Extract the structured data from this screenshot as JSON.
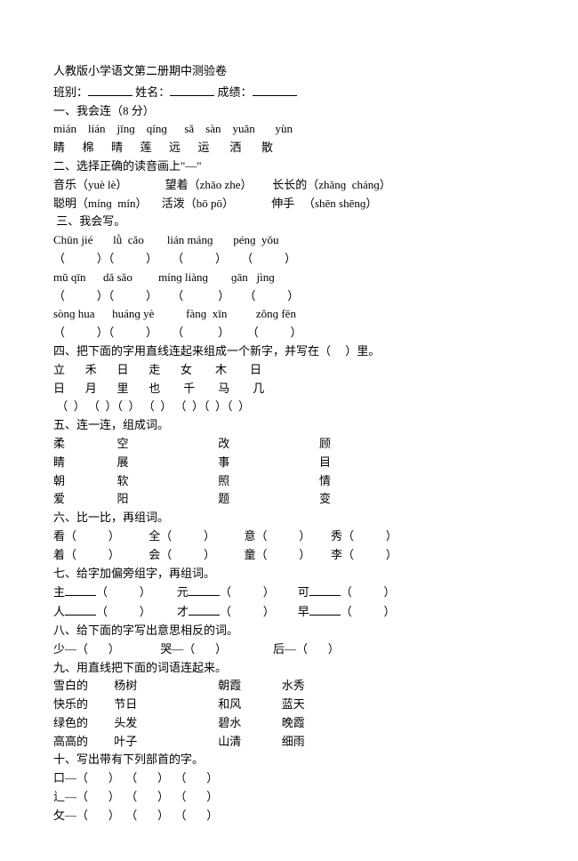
{
  "header": {
    "title": "人教版小学语文第二册期中测验卷",
    "class_label": "班别：",
    "name_label": "姓名：",
    "score_label": "成绩："
  },
  "section1": {
    "heading": "一、我会连（8 分）",
    "pinyin": "mián    lián    jīnɡ    qínɡ      sǎ    sàn    yuǎn       yùn",
    "blank": "",
    "chars": "睛      棉      晴      莲      远      运       洒       散"
  },
  "section2": {
    "heading": "二、选择正确的读音画上\"—\"",
    "line1": "音乐（yuè lè）             望着（zhāo zhe）       长长的（zhǎnɡ  chánɡ）",
    "line2": "聪明（mínɡ  mín）     活泼（bō pō）             伸手   （shēn shēnɡ）"
  },
  "section3": {
    "heading": " 三、我会写。",
    "row1_pinyin": "Chūn jié       lǜ  cǎo        lián mánɡ       pénɡ  yǒu",
    "row1_blanks": "（           ）（           ）     （           ）     （           ）",
    "row2_pinyin": "mǔ qīn      dǎ sǎo         mínɡ liànɡ        ɡān   jìnɡ",
    "row2_blanks": "（           ）（           ）     （            ）     （           ）",
    "row3_pinyin": "sònɡ hua      huánɡ yè           fànɡ  xīn          zǒnɡ fēn",
    "row3_blanks": "（           ）（           ）     （            ）      （           ）"
  },
  "section4": {
    "heading": "四、把下面的字用直线连起来组成一个新字，并写在（     ）里。",
    "row1": "立       禾       日       走       女        木        日",
    "blank": "",
    "row2": "日       月       里       也        千        马        几",
    "row3": " （  ） （  ）（  ） （  ） （  ）（  ）（  ）"
  },
  "section5": {
    "heading": "五、连一连，组成词。",
    "blank": "",
    "row1": "柔                  空                               改                               顾",
    "row2": "睛                  展                               事                               目",
    "row3": "朝                  软                               照                               情",
    "row4": "爱                  阳                               题                               变"
  },
  "section6": {
    "heading": "六、比一比，再组词。",
    "row1": "看（           ）          全（           ）          意（           ）       秀（           ）",
    "row2": "着（           ）          会（           ）          童（           ）       李（           ）"
  },
  "section7": {
    "heading": "七、给字加偏旁组字，再组词。",
    "row1_prefix": "主",
    "row1_mid1": "（           ）         元",
    "row1_mid2": "（           ）        可",
    "row1_end": "（           ）",
    "row2_prefix": "人",
    "row2_mid1": "（           ）         才",
    "row2_mid2": "（           ）        早",
    "row2_end": "（           ）"
  },
  "section8": {
    "heading": "八、给下面的字写出意思相反的词。",
    "row1": "少—（       ）              哭—（       ）                后—（       ）"
  },
  "section9": {
    "heading": "九、用直线把下面的词语连起来。",
    "row1": "雪白的         杨树                            朝霞              水秀",
    "row2": "快乐的         节日                            和风              蓝天",
    "row3": "绿色的         头发                            碧水              晚霞",
    "row4": "高高的         叶子                            山清              细雨"
  },
  "section10": {
    "heading": "十、写出带有下列部首的字。",
    "row1": "口—（       ）  （       ）  （       ）",
    "row2": "辶—（       ）  （       ）  （       ）",
    "row3": "攵—（       ）  （       ）  （       ）"
  }
}
